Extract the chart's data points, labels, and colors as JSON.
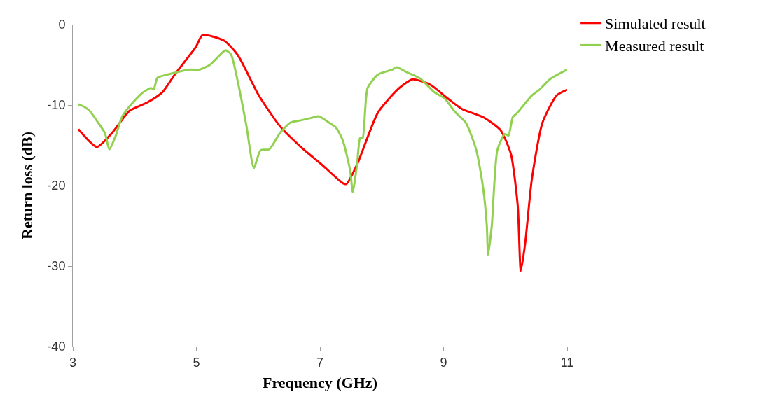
{
  "chart_data": {
    "type": "line",
    "xlabel": "Frequency (GHz)",
    "ylabel": "Return loss (dB)",
    "xlim": [
      3,
      11
    ],
    "xticks": [
      3,
      5,
      7,
      9,
      11
    ],
    "ylim": [
      -40,
      0
    ],
    "yticks": [
      -40,
      -30,
      -20,
      -10,
      0
    ],
    "grid": false,
    "legend": "top right",
    "marker": "none",
    "line_style": "solid",
    "series": [
      {
        "name": "Simulated result",
        "color": "#ff0000",
        "x": [
          3.09,
          3.39,
          3.63,
          3.92,
          4.2,
          4.45,
          4.65,
          4.99,
          5.1,
          5.45,
          5.67,
          6.01,
          6.35,
          6.69,
          7.03,
          7.37,
          7.43,
          7.6,
          7.94,
          8.28,
          8.5,
          8.79,
          9.07,
          9.3,
          9.64,
          9.92,
          10.09,
          10.2,
          10.25,
          10.32,
          10.43,
          10.6,
          10.83,
          11
        ],
        "values": [
          -13.0,
          -15.2,
          -13.5,
          -10.7,
          -9.7,
          -8.4,
          -6.2,
          -2.8,
          -1.3,
          -2.0,
          -3.8,
          -8.8,
          -12.6,
          -15.2,
          -17.4,
          -19.7,
          -19.8,
          -17.4,
          -10.9,
          -7.9,
          -6.8,
          -7.5,
          -9.2,
          -10.5,
          -11.5,
          -13.1,
          -16.1,
          -22.5,
          -30.6,
          -27.2,
          -19.1,
          -12.2,
          -8.8,
          -8.1
        ]
      },
      {
        "name": "Measured result",
        "color": "#92d050",
        "x": [
          3.09,
          3.18,
          3.27,
          3.41,
          3.52,
          3.59,
          3.69,
          3.8,
          3.97,
          4.14,
          4.26,
          4.31,
          4.37,
          4.54,
          4.88,
          5.05,
          5.22,
          5.39,
          5.47,
          5.56,
          5.67,
          5.81,
          5.93,
          6.04,
          6.18,
          6.35,
          6.52,
          6.69,
          6.86,
          6.98,
          7.15,
          7.26,
          7.37,
          7.49,
          7.53,
          7.6,
          7.65,
          7.69,
          7.77,
          7.94,
          8.17,
          8.24,
          8.4,
          8.62,
          8.85,
          9.02,
          9.19,
          9.36,
          9.53,
          9.64,
          9.7,
          9.72,
          9.78,
          9.87,
          9.99,
          10.05,
          10.12,
          10.2,
          10.43,
          10.55,
          10.72,
          11
        ],
        "values": [
          -9.9,
          -10.2,
          -10.7,
          -12.2,
          -13.5,
          -15.5,
          -13.9,
          -11.4,
          -9.7,
          -8.4,
          -7.9,
          -8.0,
          -6.6,
          -6.2,
          -5.6,
          -5.6,
          -5.0,
          -3.7,
          -3.2,
          -3.7,
          -7.1,
          -12.6,
          -17.8,
          -15.6,
          -15.5,
          -13.5,
          -12.2,
          -11.9,
          -11.6,
          -11.4,
          -12.2,
          -12.8,
          -14.4,
          -18.2,
          -20.8,
          -17.4,
          -14.1,
          -14.1,
          -7.9,
          -6.2,
          -5.6,
          -5.3,
          -5.9,
          -6.7,
          -8.4,
          -9.2,
          -10.9,
          -12.2,
          -15.6,
          -20.3,
          -25.0,
          -28.6,
          -25.0,
          -15.6,
          -13.6,
          -13.8,
          -11.5,
          -10.9,
          -8.8,
          -8.1,
          -6.8,
          -5.6
        ]
      }
    ]
  }
}
